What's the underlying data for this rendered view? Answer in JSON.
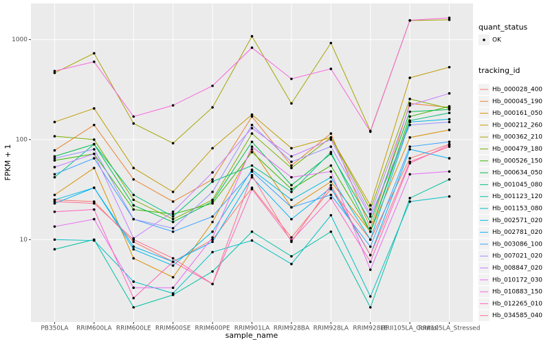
{
  "chart_data": {
    "type": "line",
    "y_label": "FPKM + 1",
    "x_label": "sample_name",
    "log_y": true,
    "grid": true,
    "legend_position": "right",
    "point_legend_title": "quant_status",
    "point_legend_label": "OK",
    "point_color": "#000000",
    "legend_title": "tracking_id",
    "categories": [
      "PB350LA",
      "RRIM600LA",
      "RRIM600LE",
      "RRIM600SE",
      "RRIM600PE",
      "RRIM901LA",
      "RRIM928BA",
      "RRIM928LA",
      "RRIM928LE",
      "RRII105LA_Control",
      "RRII105LA_Stressed"
    ],
    "ylim": [
      1.5,
      2300
    ],
    "yticks": [
      10,
      100,
      1000
    ],
    "series": [
      {
        "name": "Hb_000028_400",
        "color": "#F8766D",
        "values": [
          25,
          24,
          9.5,
          6,
          10,
          33,
          10.5,
          32,
          10,
          65,
          90
        ]
      },
      {
        "name": "Hb_000045_190",
        "color": "#EA8331",
        "values": [
          78,
          140,
          40,
          24,
          40,
          170,
          55,
          115,
          13,
          230,
          210
        ]
      },
      {
        "name": "Hb_000161_050",
        "color": "#D89000",
        "values": [
          28,
          52,
          6.5,
          4.2,
          15,
          80,
          21,
          38,
          12,
          105,
          125
        ]
      },
      {
        "name": "Hb_000212_260",
        "color": "#C09B00",
        "values": [
          150,
          205,
          52,
          30,
          82,
          178,
          82,
          105,
          22,
          415,
          530
        ]
      },
      {
        "name": "Hb_000362_210",
        "color": "#A3A500",
        "values": [
          465,
          730,
          145,
          92,
          210,
          1080,
          230,
          925,
          122,
          1550,
          1580
        ]
      },
      {
        "name": "Hb_000479_180",
        "color": "#7CAE00",
        "values": [
          108,
          100,
          25,
          16,
          25,
          115,
          52,
          105,
          20,
          255,
          205
        ]
      },
      {
        "name": "Hb_000526_150",
        "color": "#39B600",
        "values": [
          62,
          72,
          20,
          18,
          23,
          75,
          32,
          55,
          12,
          170,
          215
        ]
      },
      {
        "name": "Hb_000634_050",
        "color": "#00BB4E",
        "values": [
          68,
          90,
          22,
          15,
          24,
          95,
          35,
          72,
          15,
          190,
          200
        ]
      },
      {
        "name": "Hb_001045_080",
        "color": "#00BF7D",
        "values": [
          42,
          90,
          28,
          17,
          38,
          55,
          30,
          75,
          12,
          155,
          185
        ]
      },
      {
        "name": "Hb_001123_120",
        "color": "#00C1A3",
        "values": [
          8,
          10,
          2.1,
          2.8,
          4.8,
          12,
          6.8,
          12,
          2.1,
          26,
          40
        ]
      },
      {
        "name": "Hb_001153_080",
        "color": "#00BFC4",
        "values": [
          10,
          9.8,
          3.8,
          2.9,
          7.5,
          9.8,
          5.7,
          17.5,
          2.7,
          24,
          27
        ]
      },
      {
        "name": "Hb_002571_020",
        "color": "#00BAE0",
        "values": [
          25,
          33,
          8,
          5.5,
          12,
          50,
          25,
          42,
          10,
          150,
          160
        ]
      },
      {
        "name": "Hb_002781_020",
        "color": "#00B0F6",
        "values": [
          23,
          33,
          8.5,
          6,
          9.5,
          42,
          16,
          33,
          7,
          80,
          65
        ]
      },
      {
        "name": "Hb_003086_100",
        "color": "#35A2FF",
        "values": [
          45,
          65,
          16,
          12,
          17,
          48,
          21,
          28,
          8.5,
          85,
          95
        ]
      },
      {
        "name": "Hb_007021_020",
        "color": "#9590FF",
        "values": [
          65,
          80,
          16,
          13,
          30,
          140,
          60,
          85,
          17,
          140,
          150
        ]
      },
      {
        "name": "Hb_008847_020",
        "color": "#C77CFF",
        "values": [
          53,
          72,
          10.3,
          19,
          47,
          130,
          68,
          100,
          18,
          220,
          290
        ]
      },
      {
        "name": "Hb_010172_030",
        "color": "#E76BF3",
        "values": [
          13.5,
          16,
          3.3,
          3.3,
          10.5,
          85,
          42,
          48,
          5,
          45,
          48
        ]
      },
      {
        "name": "Hb_010883_150",
        "color": "#FA62DB",
        "values": [
          485,
          600,
          170,
          220,
          345,
          830,
          405,
          510,
          120,
          1560,
          1650
        ]
      },
      {
        "name": "Hb_012265_010",
        "color": "#FF62BC",
        "values": [
          19,
          20,
          2.6,
          6,
          3.6,
          32,
          9.8,
          26,
          6,
          58,
          88
        ]
      },
      {
        "name": "Hb_034585_040",
        "color": "#FF6C91",
        "values": [
          24,
          23,
          10,
          6.5,
          3.6,
          44,
          9.5,
          35,
          7,
          60,
          85
        ]
      }
    ]
  }
}
